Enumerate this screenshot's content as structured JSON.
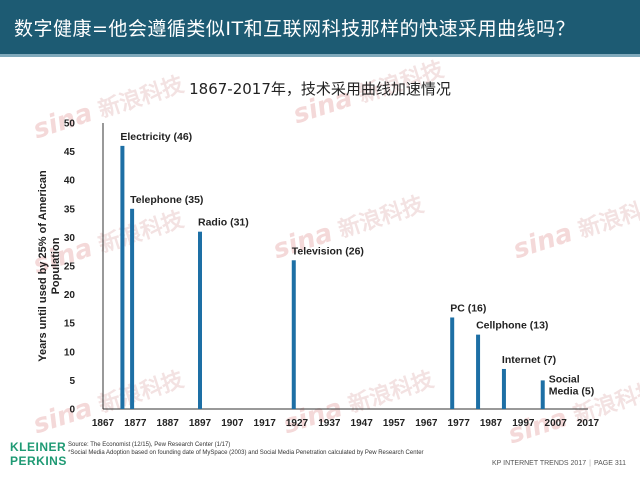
{
  "header": {
    "title": "数字健康=他会遵循类似IT和互联网科技那样的快速采用曲线吗？"
  },
  "chart_data": {
    "type": "bar",
    "title": "1867-2017年，技术采用曲线加速情况",
    "ylabel": "Years until used by 25% of American Population",
    "xlabel": "",
    "xlim": [
      1867,
      2017
    ],
    "ylim": [
      0,
      50
    ],
    "xticks": [
      "1867",
      "1877",
      "1887",
      "1897",
      "1907",
      "1917",
      "1927",
      "1937",
      "1947",
      "1957",
      "1967",
      "1977",
      "1987",
      "1997",
      "2007",
      "2017"
    ],
    "yticks": [
      "0",
      "5",
      "10",
      "15",
      "20",
      "25",
      "30",
      "35",
      "40",
      "45",
      "50"
    ],
    "bars": [
      {
        "x": 1873,
        "value": 46,
        "label": "Electricity (46)"
      },
      {
        "x": 1876,
        "value": 35,
        "label": "Telephone (35)"
      },
      {
        "x": 1897,
        "value": 31,
        "label": "Radio (31)"
      },
      {
        "x": 1926,
        "value": 26,
        "label": "Television (26)"
      },
      {
        "x": 1975,
        "value": 16,
        "label": "PC (16)"
      },
      {
        "x": 1983,
        "value": 13,
        "label": "Cellphone (13)"
      },
      {
        "x": 1991,
        "value": 7,
        "label": "Internet (7)"
      },
      {
        "x": 2003,
        "value": 5,
        "label": "Social\nMedia (5)"
      }
    ],
    "bar_color": "#1d6fa5",
    "grid": false
  },
  "source": {
    "line1": "Source: The Economist (12/15), Pew Research Center (1/17)",
    "line2": "*Social Media Adoption based on founding date of MySpace (2003) and Social Media Penetration calculated by Pew Research Center"
  },
  "logo": {
    "line1": "KLEINER",
    "line2": "PERKINS"
  },
  "footer": {
    "report": "KP INTERNET TRENDS 2017",
    "page": "PAGE 311"
  },
  "watermark": {
    "text": "新浪科技",
    "brand": "sina"
  }
}
